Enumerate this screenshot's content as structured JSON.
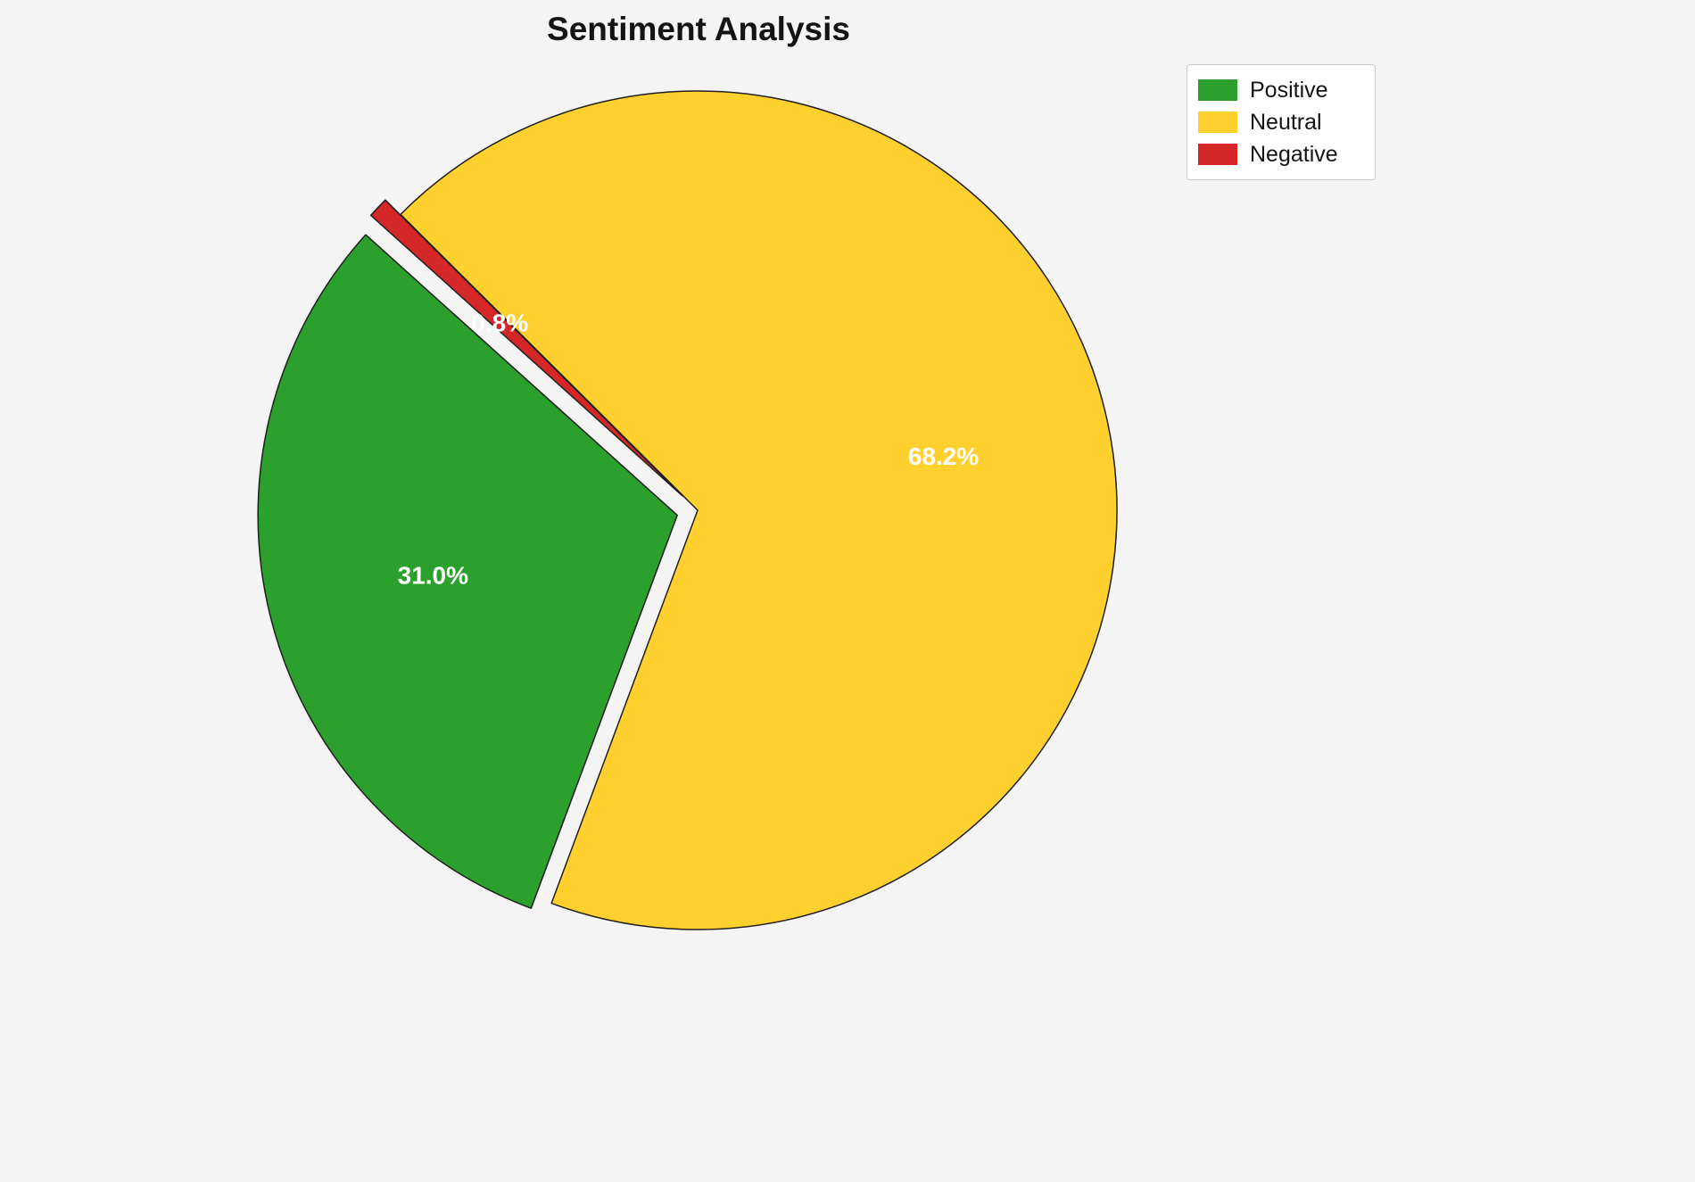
{
  "chart_data": {
    "type": "pie",
    "title": "Sentiment Analysis",
    "labels": [
      "Positive",
      "Neutral",
      "Negative"
    ],
    "values": [
      31.0,
      68.2,
      0.8
    ],
    "percent_labels": [
      "31.0%",
      "68.2%",
      "0.8%"
    ],
    "colors": [
      "#2ca02c",
      "#ffd02e",
      "#d62728"
    ],
    "explode": [
      0.05,
      0,
      0.05
    ],
    "start_angle": 138,
    "direction": "counterclockwise",
    "pct_distance": 0.6,
    "label_color": "#ffffff",
    "edge_color": "#1f1f1f",
    "background_color": "#f4f4f5",
    "legend": {
      "position": "upper right",
      "entries": [
        "Positive",
        "Neutral",
        "Negative"
      ]
    }
  }
}
